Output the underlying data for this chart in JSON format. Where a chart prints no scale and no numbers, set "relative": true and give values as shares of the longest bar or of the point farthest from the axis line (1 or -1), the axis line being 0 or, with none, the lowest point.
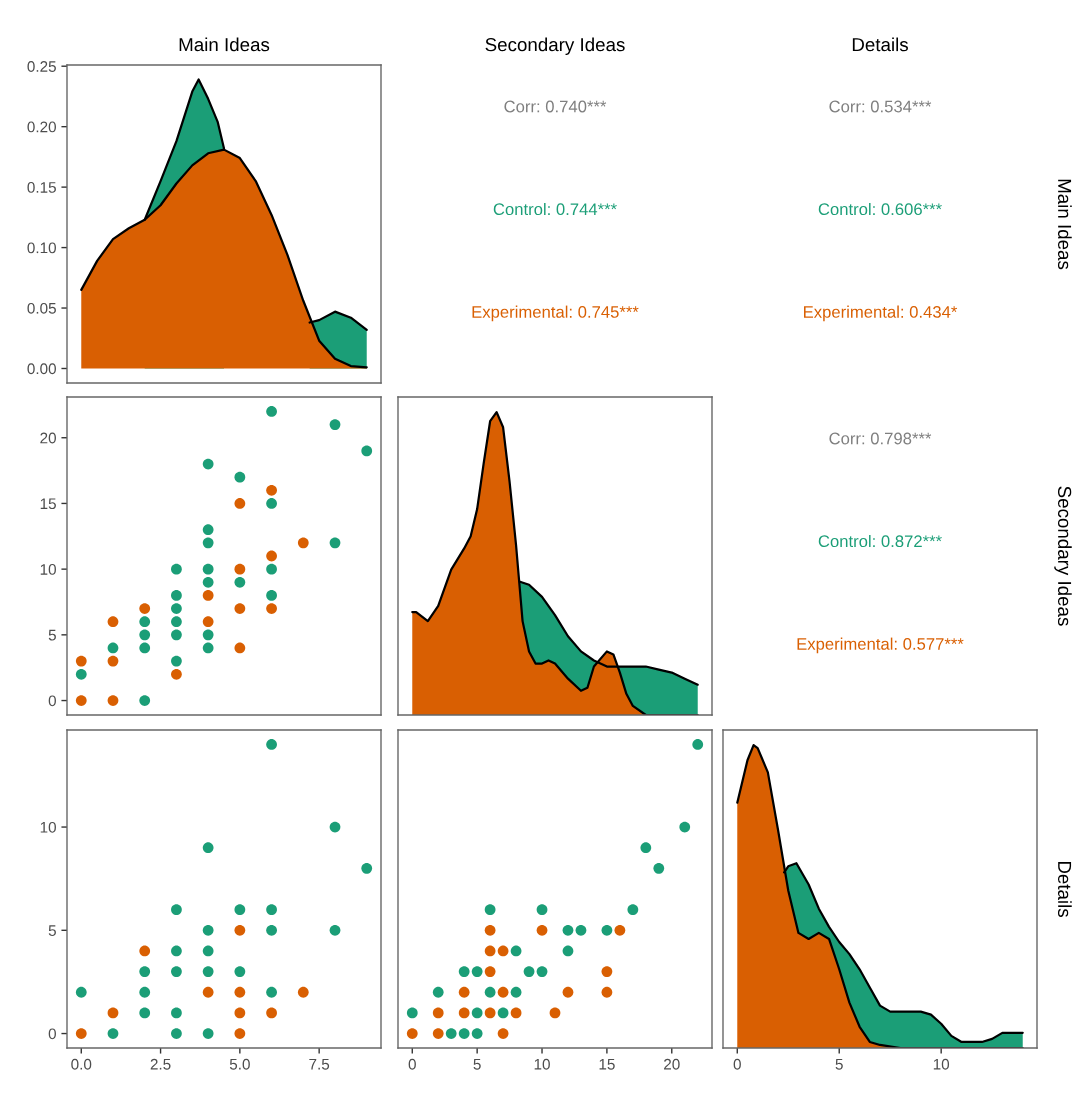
{
  "chart_data": [
    {
      "type": "area",
      "title": "Main Ideas",
      "xlim": [
        -0.45,
        9.45
      ],
      "ylim": [
        -0.012,
        0.251
      ],
      "yticks": [
        {
          "value": 0,
          "label": "0.00"
        },
        {
          "value": 0.05,
          "label": "0.05"
        },
        {
          "value": 0.1,
          "label": "0.10"
        },
        {
          "value": 0.15,
          "label": "0.15"
        },
        {
          "value": 0.2,
          "label": "0.20"
        },
        {
          "value": 0.25,
          "label": "0.25"
        }
      ],
      "tick_labels": "y",
      "series": [
        {
          "color": "#1b9e77",
          "x": [
            2,
            2.5,
            3,
            3.5,
            3.7,
            4,
            4.3,
            4.5,
            5.8,
            7.2,
            7.5,
            8,
            8.5,
            9
          ],
          "values": [
            0.123,
            0.155,
            0.188,
            0.229,
            0.239,
            0.223,
            0.204,
            0.182,
            null,
            0.038,
            0.04,
            0.047,
            0.042,
            0.032
          ]
        },
        {
          "color": "#d95f02",
          "x": [
            0,
            0.5,
            1,
            1.5,
            2,
            2.5,
            3,
            3.5,
            4,
            4.5,
            5,
            5.5,
            6,
            6.5,
            7,
            7.5,
            8,
            8.5,
            9
          ],
          "values": [
            0.065,
            0.089,
            0.107,
            0.116,
            0.123,
            0.135,
            0.153,
            0.168,
            0.178,
            0.181,
            0.174,
            0.155,
            0.127,
            0.094,
            0.056,
            0.023,
            0.008,
            0.002,
            0.001
          ]
        }
      ]
    },
    {
      "type": "other",
      "title": "Secondary Ideas",
      "annotations": [
        "Corr: 0.740***",
        "Control: 0.744***",
        "Experimental: 0.745***"
      ],
      "colors": [
        "#7f7f7f",
        "#1b9e77",
        "#d95f02"
      ]
    },
    {
      "type": "other",
      "title": "Details",
      "y2label": "Main Ideas",
      "annotations": [
        "Corr: 0.534***",
        "Control: 0.606***",
        "Experimental: 0.434*"
      ],
      "colors": [
        "#7f7f7f",
        "#1b9e77",
        "#d95f02"
      ]
    },
    {
      "type": "scatter",
      "marker": "circle",
      "xlim": [
        -0.45,
        9.45
      ],
      "ylim": [
        -1.1,
        23.1
      ],
      "yticks": [
        0,
        5,
        10,
        15,
        20
      ],
      "tick_labels": "y",
      "series": [
        {
          "color": "#1b9e77",
          "x": [
            0,
            1,
            2,
            2,
            2,
            2,
            3,
            3,
            3,
            3,
            3,
            3,
            4,
            4,
            4,
            4,
            4,
            4,
            4,
            5,
            5,
            6,
            6,
            6,
            6,
            8,
            8,
            9
          ],
          "values": [
            2,
            4,
            0,
            4,
            5,
            6,
            3,
            5,
            6,
            7,
            8,
            10,
            4,
            5,
            9,
            10,
            12,
            13,
            18,
            9,
            17,
            8,
            10,
            15,
            22,
            12,
            21,
            19
          ]
        },
        {
          "color": "#d95f02",
          "x": [
            0,
            0,
            1,
            1,
            1,
            2,
            3,
            4,
            4,
            5,
            5,
            5,
            5,
            6,
            6,
            6,
            7
          ],
          "values": [
            0,
            3,
            0,
            3,
            6,
            7,
            2,
            6,
            8,
            4,
            7,
            10,
            15,
            7,
            11,
            16,
            12
          ]
        }
      ]
    },
    {
      "type": "area",
      "relative": true,
      "xlim": [
        -1.1,
        23.1
      ],
      "tick_labels": false,
      "series": [
        {
          "color": "#1b9e77",
          "x": [
            8.3,
            9,
            10,
            11,
            12,
            13,
            14,
            15,
            16,
            17,
            18,
            19,
            20,
            21,
            22
          ],
          "values": [
            0.44,
            0.43,
            0.39,
            0.33,
            0.26,
            0.21,
            0.18,
            0.16,
            0.16,
            0.16,
            0.16,
            0.15,
            0.14,
            0.12,
            0.1
          ]
        },
        {
          "color": "#d95f02",
          "x": [
            0,
            0.3,
            1.2,
            2,
            3,
            4,
            4.5,
            5,
            5.5,
            6,
            6.5,
            7,
            7.5,
            8,
            8.5,
            9,
            9.5,
            10,
            10.5,
            11,
            12,
            13,
            13.5,
            14,
            15,
            15.5,
            16,
            16.5,
            17,
            18,
            20,
            22
          ],
          "values": [
            0.34,
            0.34,
            0.31,
            0.36,
            0.48,
            0.55,
            0.59,
            0.68,
            0.83,
            0.97,
            1,
            0.95,
            0.77,
            0.56,
            0.31,
            0.21,
            0.17,
            0.17,
            0.18,
            0.17,
            0.12,
            0.08,
            0.09,
            0.16,
            0.21,
            0.2,
            0.14,
            0.07,
            0.03,
            0,
            0,
            0
          ]
        }
      ]
    },
    {
      "type": "other",
      "y2label": "Secondary Ideas",
      "annotations": [
        "Corr: 0.798***",
        "Control: 0.872***",
        "Experimental: 0.577***"
      ],
      "colors": [
        "#7f7f7f",
        "#1b9e77",
        "#d95f02"
      ]
    },
    {
      "type": "scatter",
      "marker": "circle",
      "xlim": [
        -0.45,
        9.45
      ],
      "ylim": [
        -0.7,
        14.7
      ],
      "xticks": [
        {
          "value": 0,
          "label": "0.0"
        },
        {
          "value": 2.5,
          "label": "2.5"
        },
        {
          "value": 5,
          "label": "5.0"
        },
        {
          "value": 7.5,
          "label": "7.5"
        }
      ],
      "yticks": [
        0,
        5,
        10
      ],
      "series": [
        {
          "color": "#1b9e77",
          "x": [
            0,
            1,
            2,
            2,
            2,
            3,
            3,
            3,
            3,
            3,
            4,
            4,
            4,
            4,
            4,
            5,
            5,
            6,
            6,
            6,
            6,
            8,
            8,
            9
          ],
          "values": [
            2,
            0,
            1,
            2,
            3,
            0,
            1,
            3,
            4,
            6,
            0,
            3,
            4,
            5,
            9,
            3,
            6,
            2,
            5,
            6,
            14,
            5,
            10,
            8
          ]
        },
        {
          "color": "#d95f02",
          "x": [
            0,
            1,
            2,
            4,
            5,
            5,
            5,
            5,
            6,
            7
          ],
          "values": [
            0,
            1,
            4,
            2,
            0,
            1,
            2,
            5,
            1,
            2
          ]
        }
      ]
    },
    {
      "type": "scatter",
      "marker": "circle",
      "xlim": [
        -1.1,
        23.1
      ],
      "ylim": [
        -0.7,
        14.7
      ],
      "xticks": [
        0,
        5,
        10,
        15,
        20
      ],
      "tick_labels": "x",
      "series": [
        {
          "color": "#1b9e77",
          "x": [
            0,
            2,
            3,
            4,
            4,
            5,
            5,
            5,
            6,
            6,
            7,
            8,
            8,
            9,
            10,
            10,
            12,
            12,
            13,
            15,
            17,
            18,
            19,
            21,
            22
          ],
          "values": [
            1,
            2,
            0,
            0,
            3,
            0,
            1,
            3,
            2,
            6,
            1,
            2,
            4,
            3,
            3,
            6,
            4,
            5,
            5,
            5,
            6,
            9,
            8,
            10,
            14
          ]
        },
        {
          "color": "#d95f02",
          "x": [
            0,
            2,
            2,
            4,
            4,
            6,
            6,
            6,
            6,
            7,
            7,
            7,
            8,
            10,
            11,
            12,
            15,
            15,
            16
          ],
          "values": [
            0,
            0,
            1,
            1,
            2,
            1,
            3,
            4,
            5,
            0,
            2,
            4,
            1,
            5,
            1,
            2,
            2,
            3,
            5
          ]
        }
      ]
    },
    {
      "type": "area",
      "relative": true,
      "xlim": [
        -0.7,
        14.7
      ],
      "xticks": [
        0,
        5,
        10
      ],
      "tick_labels": "x",
      "y2label": "Details",
      "series": [
        {
          "color": "#1b9e77",
          "x": [
            2.3,
            2.5,
            2.9,
            3.5,
            4,
            4.5,
            5,
            5.5,
            6,
            6.5,
            7,
            7.5,
            8,
            9,
            9.5,
            10,
            10.5,
            11,
            11.5,
            12,
            12.5,
            13,
            14
          ],
          "values": [
            0.58,
            0.6,
            0.61,
            0.54,
            0.46,
            0.4,
            0.35,
            0.31,
            0.26,
            0.2,
            0.14,
            0.12,
            0.12,
            0.12,
            0.11,
            0.08,
            0.04,
            0.02,
            0.02,
            0.02,
            0.03,
            0.05,
            0.05
          ]
        },
        {
          "color": "#d95f02",
          "x": [
            0,
            0.5,
            0.8,
            1,
            1.5,
            2,
            2.5,
            3,
            3.5,
            4,
            4.5,
            5,
            5.5,
            6,
            6.5,
            7,
            8,
            10,
            14
          ],
          "values": [
            0.81,
            0.95,
            1,
            0.99,
            0.91,
            0.72,
            0.52,
            0.38,
            0.36,
            0.38,
            0.36,
            0.26,
            0.15,
            0.07,
            0.02,
            0.01,
            0,
            0,
            0
          ]
        }
      ]
    }
  ]
}
